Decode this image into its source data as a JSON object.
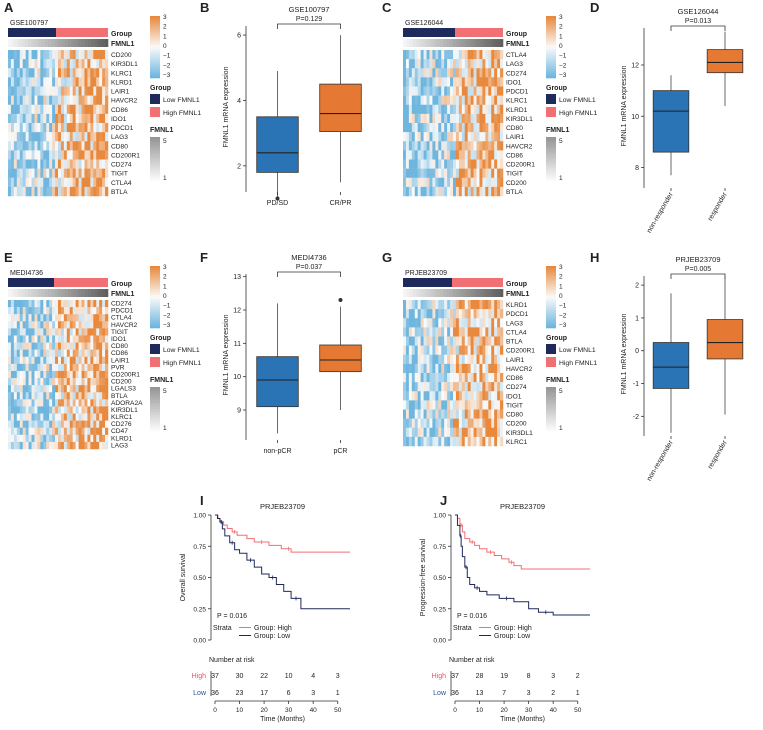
{
  "heatmap_legends": {
    "group_title": "Group",
    "fmnl1_title": "FMNL1",
    "group_items": [
      "Low FMNL1",
      "High FMNL1"
    ],
    "scale_ticks": [
      "3",
      "2",
      "1",
      "0",
      "−1",
      "−2",
      "−3"
    ],
    "fmnl1_ticks": [
      "5",
      "1"
    ]
  },
  "colors": {
    "low_group": "#1f2a5c",
    "high_group": "#f07074",
    "heat_high": "#e8893d",
    "heat_low": "#6fb6de",
    "box_low": "#2a73b5",
    "box_high": "#e57933",
    "km_high": "#f07074",
    "km_low": "#1f2a5c",
    "risk_high_label": "#e05a5f",
    "risk_low_label": "#2a4f9a"
  },
  "chart_data": [
    {
      "panel": "A",
      "type": "heatmap",
      "title": "GSE100797",
      "genes": [
        "CD200",
        "KIR3DL1",
        "KLRC1",
        "KLRD1",
        "LAIR1",
        "HAVCR2",
        "CD86",
        "IDO1",
        "PDCD1",
        "LAG3",
        "CD80",
        "CD200R1",
        "CD274",
        "TIGIT",
        "CTLA4",
        "BTLA"
      ],
      "group_split": 0.48
    },
    {
      "panel": "B",
      "type": "box",
      "title": "GSE100797",
      "pvalue": "P=0.129",
      "ylabel": "FMNL1 mRNA expression",
      "ylim": [
        1.2,
        6.4
      ],
      "yticks": [
        2,
        4,
        6
      ],
      "categories": [
        "PD/SD",
        "CR/PR"
      ],
      "boxes": [
        {
          "q1": 1.8,
          "median": 2.4,
          "q3": 3.5,
          "whislo": 1.05,
          "whishi": 4.9,
          "outliers": [
            1.0
          ]
        },
        {
          "q1": 3.05,
          "median": 3.6,
          "q3": 4.5,
          "whislo": 1.5,
          "whishi": 6.0,
          "outliers": []
        }
      ]
    },
    {
      "panel": "C",
      "type": "heatmap",
      "title": "GSE126044",
      "genes": [
        "CTLA4",
        "LAG3",
        "CD274",
        "IDO1",
        "PDCD1",
        "KLRC1",
        "KLRD1",
        "KIR3DL1",
        "CD80",
        "LAIR1",
        "HAVCR2",
        "CD86",
        "CD200R1",
        "TIGIT",
        "CD200",
        "BTLA"
      ],
      "group_split": 0.52
    },
    {
      "panel": "D",
      "type": "box",
      "title": "GSE126044",
      "pvalue": "P=0.013",
      "ylabel": "FMNL1 mRNA expression",
      "ylim": [
        7.2,
        13.6
      ],
      "yticks": [
        8,
        10,
        12
      ],
      "categories": [
        "non-responder",
        "responder"
      ],
      "boxes": [
        {
          "q1": 8.6,
          "median": 10.2,
          "q3": 11.0,
          "whislo": 7.7,
          "whishi": 11.6,
          "outliers": []
        },
        {
          "q1": 11.7,
          "median": 12.1,
          "q3": 12.6,
          "whislo": 10.4,
          "whishi": 13.3,
          "outliers": []
        }
      ]
    },
    {
      "panel": "E",
      "type": "heatmap",
      "title": "MEDI4736",
      "genes": [
        "CD274",
        "PDCD1",
        "CTLA4",
        "HAVCR2",
        "TIGIT",
        "IDO1",
        "CD80",
        "CD86",
        "LAIR1",
        "PVR",
        "CD200R1",
        "CD200",
        "LGALS3",
        "BTLA",
        "ADORA2A",
        "KIR3DL1",
        "KLRC1",
        "CD276",
        "CD47",
        "KLRD1",
        "LAG3"
      ],
      "group_split": 0.46
    },
    {
      "panel": "F",
      "type": "box",
      "title": "MEDI4736",
      "pvalue": "P=0.037",
      "ylabel": "FMNL1 mRNA expression",
      "ylim": [
        8.1,
        13.2
      ],
      "yticks": [
        9,
        10,
        11,
        12,
        13
      ],
      "categories": [
        "non-pCR",
        "pCR"
      ],
      "boxes": [
        {
          "q1": 9.1,
          "median": 9.9,
          "q3": 10.6,
          "whislo": 8.3,
          "whishi": 12.2,
          "outliers": []
        },
        {
          "q1": 10.15,
          "median": 10.5,
          "q3": 10.95,
          "whislo": 9.0,
          "whishi": 12.1,
          "outliers": [
            12.3
          ]
        }
      ]
    },
    {
      "panel": "G",
      "type": "heatmap",
      "title": "PRJEB23709",
      "genes": [
        "KLRD1",
        "PDCD1",
        "LAG3",
        "CTLA4",
        "BTLA",
        "CD200R1",
        "LAIR1",
        "HAVCR2",
        "CD86",
        "CD274",
        "IDO1",
        "TIGIT",
        "CD80",
        "CD200",
        "KIR3DL1",
        "KLRC1"
      ],
      "group_split": 0.49
    },
    {
      "panel": "H",
      "type": "box",
      "title": "PRJEB23709",
      "pvalue": "P=0.005",
      "ylabel": "FMNL1 mRNA expression",
      "ylim": [
        -2.6,
        2.4
      ],
      "yticks": [
        -2,
        -1,
        0,
        1,
        2
      ],
      "categories": [
        "non-responder",
        "responder"
      ],
      "boxes": [
        {
          "q1": -1.15,
          "median": -0.5,
          "q3": 0.25,
          "whislo": -2.5,
          "whishi": 1.75,
          "outliers": []
        },
        {
          "q1": -0.25,
          "median": 0.25,
          "q3": 0.95,
          "whislo": -1.95,
          "whishi": 2.25,
          "outliers": []
        }
      ]
    },
    {
      "panel": "I",
      "type": "line",
      "subtype": "kaplan-meier",
      "title": "PRJEB23709",
      "ylabel": "Overall survival",
      "xlabel": "Time (Months)",
      "xlim": [
        0,
        55
      ],
      "ylim": [
        0,
        1
      ],
      "xticks": [
        0,
        10,
        20,
        30,
        40,
        50
      ],
      "yticks": [
        "0.00",
        "0.25",
        "0.50",
        "0.75",
        "1.00"
      ],
      "pvalue": "P = 0.016",
      "legend_title": "Strata",
      "legend": [
        "Group: High",
        "Group: Low"
      ],
      "series": [
        {
          "name": "Group: High",
          "x": [
            0,
            1.2,
            2,
            3.5,
            5,
            7,
            9,
            13,
            16,
            22,
            27,
            29,
            31,
            55
          ],
          "y": [
            1.0,
            0.973,
            0.946,
            0.919,
            0.892,
            0.865,
            0.838,
            0.811,
            0.784,
            0.757,
            0.73,
            0.73,
            0.703,
            0.703
          ]
        },
        {
          "name": "Group: Low",
          "x": [
            0,
            1,
            2,
            3,
            4,
            6,
            8,
            10,
            13,
            16,
            19,
            22,
            25,
            28,
            31,
            35,
            55
          ],
          "y": [
            1.0,
            0.972,
            0.944,
            0.889,
            0.833,
            0.778,
            0.722,
            0.694,
            0.639,
            0.583,
            0.528,
            0.5,
            0.444,
            0.389,
            0.333,
            0.25,
            0.25
          ]
        }
      ],
      "risk_table": {
        "title": "Number at risk",
        "rows": [
          {
            "label": "High",
            "values": [
              "37",
              "30",
              "22",
              "10",
              "4",
              "3"
            ]
          },
          {
            "label": "Low",
            "values": [
              "36",
              "23",
              "17",
              "6",
              "3",
              "1"
            ]
          }
        ]
      }
    },
    {
      "panel": "J",
      "type": "line",
      "subtype": "kaplan-meier",
      "title": "PRJEB23709",
      "ylabel": "Progression-free survival",
      "xlabel": "Time (Months)",
      "xlim": [
        0,
        55
      ],
      "ylim": [
        0,
        1
      ],
      "xticks": [
        0,
        10,
        20,
        30,
        40,
        50
      ],
      "yticks": [
        "0.00",
        "0.25",
        "0.50",
        "0.75",
        "1.00"
      ],
      "pvalue": "P = 0.016",
      "legend_title": "Strata",
      "legend": [
        "Group: High",
        "Group: Low"
      ],
      "series": [
        {
          "name": "Group: High",
          "x": [
            0,
            1,
            2,
            3,
            4,
            6,
            8,
            10,
            13,
            16,
            19,
            22,
            24,
            27,
            55
          ],
          "y": [
            1.0,
            0.973,
            0.919,
            0.865,
            0.811,
            0.784,
            0.757,
            0.73,
            0.703,
            0.676,
            0.649,
            0.622,
            0.595,
            0.568,
            0.568
          ]
        },
        {
          "name": "Group: Low",
          "x": [
            0,
            1,
            2,
            2.5,
            3,
            4,
            5,
            6,
            8,
            10,
            13,
            18,
            24,
            30,
            34,
            40,
            55
          ],
          "y": [
            1.0,
            0.917,
            0.833,
            0.75,
            0.667,
            0.583,
            0.5,
            0.444,
            0.417,
            0.389,
            0.361,
            0.333,
            0.306,
            0.25,
            0.222,
            0.2,
            0.2
          ]
        }
      ],
      "risk_table": {
        "title": "Number at risk",
        "rows": [
          {
            "label": "High",
            "values": [
              "37",
              "28",
              "19",
              "8",
              "3",
              "2"
            ]
          },
          {
            "label": "Low",
            "values": [
              "36",
              "13",
              "7",
              "3",
              "2",
              "1"
            ]
          }
        ]
      }
    }
  ]
}
